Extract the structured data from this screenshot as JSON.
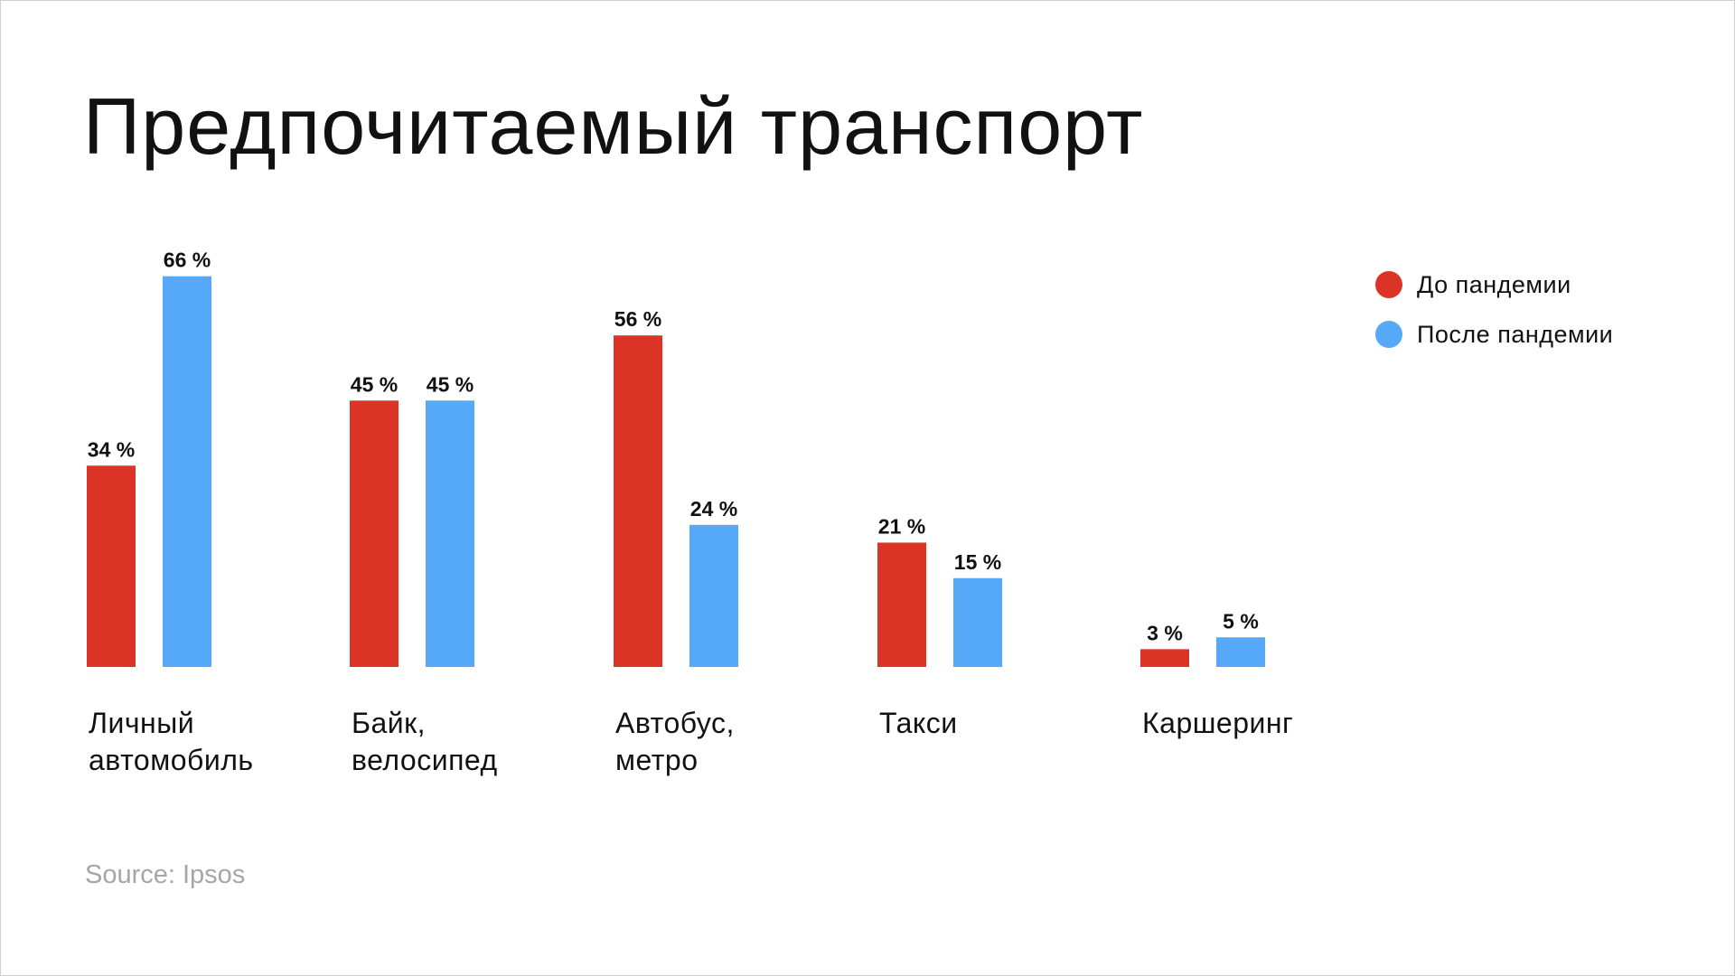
{
  "title": "Предпочитаемый транспорт",
  "source": "Source: Ipsos",
  "colors": {
    "before": "#dc3327",
    "after": "#55a9f8"
  },
  "legend": [
    {
      "label": "До пандемии",
      "color": "#dc3327"
    },
    {
      "label": "После пандемии",
      "color": "#55a9f8"
    }
  ],
  "chart_data": {
    "type": "bar",
    "title": "Предпочитаемый транспорт",
    "xlabel": "",
    "ylabel": "",
    "ylim": [
      0,
      66
    ],
    "grid": false,
    "legend_position": "top-right",
    "categories": [
      [
        "Личный",
        "автомобиль"
      ],
      [
        "Байк,",
        "велосипед"
      ],
      [
        "Автобус,",
        "метро"
      ],
      [
        "Такси"
      ],
      [
        "Каршеринг"
      ]
    ],
    "series": [
      {
        "name": "До пандемии",
        "values": [
          34,
          45,
          56,
          21,
          3
        ],
        "labels": [
          "34 %",
          "45 %",
          "56 %",
          "21 %",
          "3 %"
        ],
        "color": "#dc3327"
      },
      {
        "name": "После пандемии",
        "values": [
          66,
          45,
          24,
          15,
          5
        ],
        "labels": [
          "66 %",
          "45 %",
          "24 %",
          "15 %",
          "5 %"
        ],
        "color": "#55a9f8"
      }
    ]
  }
}
